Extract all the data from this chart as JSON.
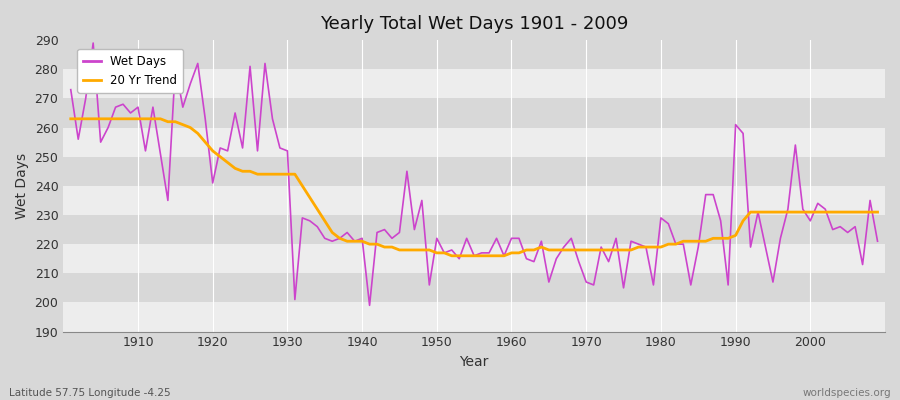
{
  "title": "Yearly Total Wet Days 1901 - 2009",
  "xlabel": "Year",
  "ylabel": "Wet Days",
  "lat_lon_label": "Latitude 57.75 Longitude -4.25",
  "source_label": "worldspecies.org",
  "ylim": [
    190,
    290
  ],
  "xlim": [
    1900,
    2010
  ],
  "yticks": [
    190,
    200,
    210,
    220,
    230,
    240,
    250,
    260,
    270,
    280,
    290
  ],
  "xticks": [
    1910,
    1920,
    1930,
    1940,
    1950,
    1960,
    1970,
    1980,
    1990,
    2000
  ],
  "wet_days_color": "#cc44cc",
  "trend_color": "#ffaa00",
  "fig_background": "#d8d8d8",
  "plot_background": "#d8d8d8",
  "grid_color": "#ffffff",
  "years": [
    1901,
    1902,
    1903,
    1904,
    1905,
    1906,
    1907,
    1908,
    1909,
    1910,
    1911,
    1912,
    1913,
    1914,
    1915,
    1916,
    1917,
    1918,
    1919,
    1920,
    1921,
    1922,
    1923,
    1924,
    1925,
    1926,
    1927,
    1928,
    1929,
    1930,
    1931,
    1932,
    1933,
    1934,
    1935,
    1936,
    1937,
    1938,
    1939,
    1940,
    1941,
    1942,
    1943,
    1944,
    1945,
    1946,
    1947,
    1948,
    1949,
    1950,
    1951,
    1952,
    1953,
    1954,
    1955,
    1956,
    1957,
    1958,
    1959,
    1960,
    1961,
    1962,
    1963,
    1964,
    1965,
    1966,
    1967,
    1968,
    1969,
    1970,
    1971,
    1972,
    1973,
    1974,
    1975,
    1976,
    1977,
    1978,
    1979,
    1980,
    1981,
    1982,
    1983,
    1984,
    1985,
    1986,
    1987,
    1988,
    1989,
    1990,
    1991,
    1992,
    1993,
    1994,
    1995,
    1996,
    1997,
    1998,
    1999,
    2000,
    2001,
    2002,
    2003,
    2004,
    2005,
    2006,
    2007,
    2008,
    2009
  ],
  "wet_days": [
    273,
    256,
    270,
    289,
    255,
    260,
    267,
    268,
    265,
    267,
    252,
    267,
    251,
    235,
    281,
    267,
    275,
    282,
    263,
    241,
    253,
    252,
    265,
    253,
    281,
    252,
    282,
    263,
    253,
    252,
    201,
    229,
    228,
    226,
    222,
    221,
    222,
    224,
    221,
    222,
    199,
    224,
    225,
    222,
    224,
    245,
    225,
    235,
    206,
    222,
    217,
    218,
    215,
    222,
    216,
    217,
    217,
    222,
    216,
    222,
    222,
    215,
    214,
    221,
    207,
    215,
    219,
    222,
    214,
    207,
    206,
    219,
    214,
    222,
    205,
    221,
    220,
    219,
    206,
    229,
    227,
    220,
    220,
    206,
    219,
    237,
    237,
    228,
    206,
    261,
    258,
    219,
    231,
    219,
    207,
    222,
    232,
    254,
    232,
    228,
    234,
    232,
    225,
    226,
    224,
    226,
    213,
    235,
    221
  ],
  "trend": [
    263,
    263,
    263,
    263,
    263,
    263,
    263,
    263,
    263,
    263,
    263,
    263,
    263,
    262,
    262,
    261,
    260,
    258,
    255,
    252,
    250,
    248,
    246,
    245,
    245,
    244,
    244,
    244,
    244,
    244,
    244,
    240,
    236,
    232,
    228,
    224,
    222,
    221,
    221,
    221,
    220,
    220,
    219,
    219,
    218,
    218,
    218,
    218,
    218,
    217,
    217,
    216,
    216,
    216,
    216,
    216,
    216,
    216,
    216,
    217,
    217,
    218,
    218,
    219,
    218,
    218,
    218,
    218,
    218,
    218,
    218,
    218,
    218,
    218,
    218,
    218,
    219,
    219,
    219,
    219,
    220,
    220,
    221,
    221,
    221,
    221,
    222,
    222,
    222,
    223,
    228,
    231,
    231,
    231,
    231,
    231,
    231,
    231,
    231,
    231,
    231,
    231,
    231,
    231,
    231,
    231,
    231,
    231,
    231
  ]
}
